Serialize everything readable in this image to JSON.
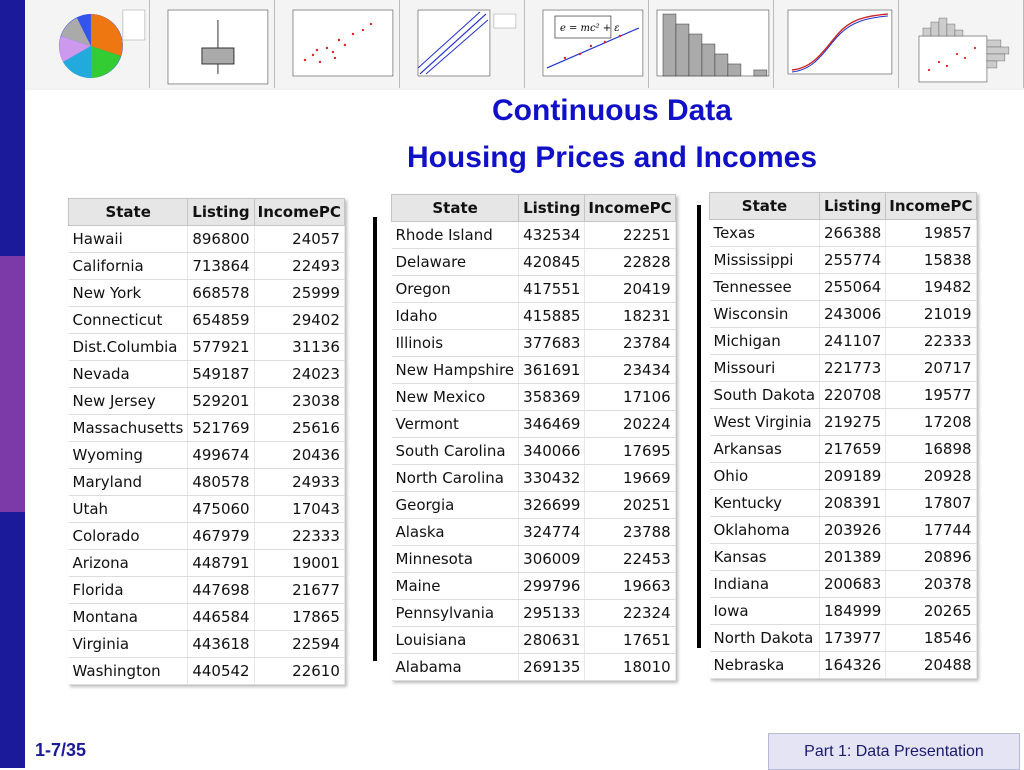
{
  "title_line1": "Continuous Data",
  "title_line2": "Housing Prices and Incomes",
  "columns": [
    "State",
    "Listing",
    "IncomePC"
  ],
  "table1": [
    [
      "Hawaii",
      "896800",
      "24057"
    ],
    [
      "California",
      "713864",
      "22493"
    ],
    [
      "New York",
      "668578",
      "25999"
    ],
    [
      "Connecticut",
      "654859",
      "29402"
    ],
    [
      "Dist.Columbia",
      "577921",
      "31136"
    ],
    [
      "Nevada",
      "549187",
      "24023"
    ],
    [
      "New Jersey",
      "529201",
      "23038"
    ],
    [
      "Massachusetts",
      "521769",
      "25616"
    ],
    [
      "Wyoming",
      "499674",
      "20436"
    ],
    [
      "Maryland",
      "480578",
      "24933"
    ],
    [
      "Utah",
      "475060",
      "17043"
    ],
    [
      "Colorado",
      "467979",
      "22333"
    ],
    [
      "Arizona",
      "448791",
      "19001"
    ],
    [
      "Florida",
      "447698",
      "21677"
    ],
    [
      "Montana",
      "446584",
      "17865"
    ],
    [
      "Virginia",
      "443618",
      "22594"
    ],
    [
      "Washington",
      "440542",
      "22610"
    ]
  ],
  "table2": [
    [
      "Rhode Island",
      "432534",
      "22251"
    ],
    [
      "Delaware",
      "420845",
      "22828"
    ],
    [
      "Oregon",
      "417551",
      "20419"
    ],
    [
      "Idaho",
      "415885",
      "18231"
    ],
    [
      "Illinois",
      "377683",
      "23784"
    ],
    [
      "New Hampshire",
      "361691",
      "23434"
    ],
    [
      "New Mexico",
      "358369",
      "17106"
    ],
    [
      "Vermont",
      "346469",
      "20224"
    ],
    [
      "South Carolina",
      "340066",
      "17695"
    ],
    [
      "North Carolina",
      "330432",
      "19669"
    ],
    [
      "Georgia",
      "326699",
      "20251"
    ],
    [
      "Alaska",
      "324774",
      "23788"
    ],
    [
      "Minnesota",
      "306009",
      "22453"
    ],
    [
      "Maine",
      "299796",
      "19663"
    ],
    [
      "Pennsylvania",
      "295133",
      "22324"
    ],
    [
      "Louisiana",
      "280631",
      "17651"
    ],
    [
      "Alabama",
      "269135",
      "18010"
    ]
  ],
  "table3": [
    [
      "Texas",
      "266388",
      "19857"
    ],
    [
      "Mississippi",
      "255774",
      "15838"
    ],
    [
      "Tennessee",
      "255064",
      "19482"
    ],
    [
      "Wisconsin",
      "243006",
      "21019"
    ],
    [
      "Michigan",
      "241107",
      "22333"
    ],
    [
      "Missouri",
      "221773",
      "20717"
    ],
    [
      "South Dakota",
      "220708",
      "19577"
    ],
    [
      "West Virginia",
      "219275",
      "17208"
    ],
    [
      "Arkansas",
      "217659",
      "16898"
    ],
    [
      "Ohio",
      "209189",
      "20928"
    ],
    [
      "Kentucky",
      "208391",
      "17807"
    ],
    [
      "Oklahoma",
      "203926",
      "17744"
    ],
    [
      "Kansas",
      "201389",
      "20896"
    ],
    [
      "Indiana",
      "200683",
      "20378"
    ],
    [
      "Iowa",
      "184999",
      "20265"
    ],
    [
      "North Dakota",
      "173977",
      "18546"
    ],
    [
      "Nebraska",
      "164326",
      "20488"
    ]
  ],
  "footer": {
    "slide_number": "1-7/35",
    "section": "Part 1: Data Presentation"
  },
  "colors": {
    "title": "#1010c8",
    "sidebar_blue": "#1a1a9a",
    "sidebar_purple": "#7b3aa8"
  },
  "thumbnails": [
    "pie-chart",
    "box-plot",
    "scatter-plot",
    "probability-plot",
    "scatter-with-fit-line",
    "histogram",
    "empirical-cdf",
    "marginal-plot"
  ]
}
